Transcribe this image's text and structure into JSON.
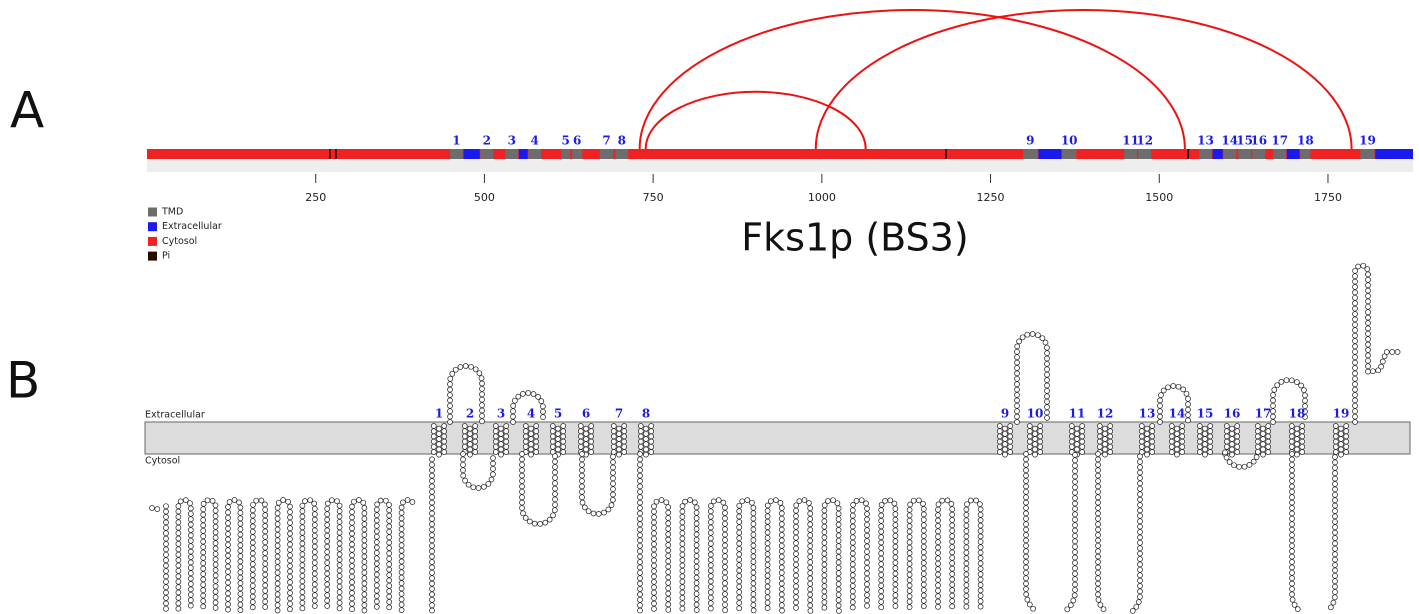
{
  "panel_a": {
    "label": "A",
    "title": "Fks1p (BS3)",
    "axis": {
      "range": [
        0,
        1876
      ],
      "ticks": [
        250,
        500,
        750,
        1000,
        1250,
        1500,
        1750
      ]
    },
    "tmd_labels": [
      "1",
      "2",
      "3",
      "4",
      "5",
      "6",
      "7",
      "8",
      "9",
      "10",
      "11",
      "12",
      "13",
      "14",
      "15",
      "16",
      "17",
      "18",
      "19"
    ],
    "tmd": [
      [
        449,
        468
      ],
      [
        494,
        513
      ],
      [
        531,
        550
      ],
      [
        565,
        584
      ],
      [
        614,
        627
      ],
      [
        630,
        645
      ],
      [
        671,
        691
      ],
      [
        694,
        713
      ],
      [
        1298,
        1320
      ],
      [
        1356,
        1377
      ],
      [
        1448,
        1467
      ],
      [
        1469,
        1488
      ],
      [
        1559,
        1578
      ],
      [
        1595,
        1614
      ],
      [
        1617,
        1636
      ],
      [
        1638,
        1657
      ],
      [
        1669,
        1688
      ],
      [
        1709,
        1724
      ],
      [
        1798,
        1819
      ]
    ],
    "extracellular": [
      [
        469,
        493
      ],
      [
        551,
        564
      ],
      [
        1321,
        1355
      ],
      [
        1579,
        1594
      ],
      [
        1689,
        1708
      ],
      [
        1820,
        1876
      ]
    ],
    "phospho": [
      271,
      280,
      1184,
      1543
    ],
    "crosslinks": [
      [
        730,
        1538
      ],
      [
        739,
        1065
      ],
      [
        991,
        1785
      ]
    ],
    "legend": [
      {
        "label": "TMD",
        "color": "#6d6d6d"
      },
      {
        "label": "Extracellular",
        "color": "#1a1aee"
      },
      {
        "label": "Cytosol",
        "color": "#ee2222"
      },
      {
        "label": "Pi",
        "color": "#2a0a00"
      }
    ]
  },
  "panel_b": {
    "label": "B",
    "extracellular": "Extracellular",
    "cytosol": "Cytosol",
    "tmd_labels": [
      "1",
      "2",
      "3",
      "4",
      "5",
      "6",
      "7",
      "8",
      "9",
      "10",
      "11",
      "12",
      "13",
      "14",
      "15",
      "16",
      "17",
      "18",
      "19"
    ]
  }
}
